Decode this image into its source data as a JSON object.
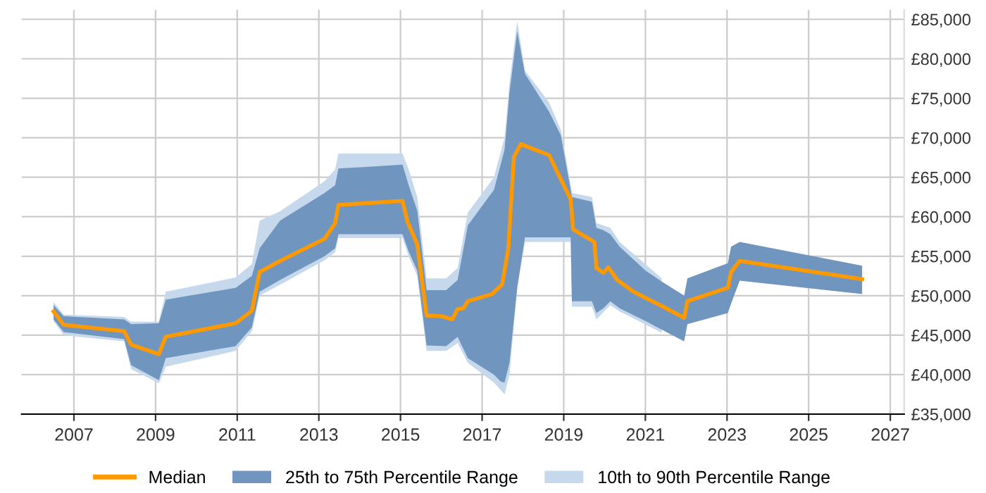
{
  "chart_data": {
    "type": "line",
    "series": [
      {
        "name": "10th to 90th Percentile Range",
        "type": "line",
        "color": "#c6d8ec",
        "values": [
          null,
          null,
          null,
          null,
          null,
          null,
          null,
          null,
          null,
          null,
          null,
          null,
          null,
          null,
          null,
          null,
          null,
          null,
          null,
          null,
          null,
          null,
          null,
          null,
          null,
          null,
          null,
          null,
          null,
          null,
          null,
          null,
          null,
          null
        ],
        "x": [
          2006.5,
          2006.75,
          2008.23,
          2008.4,
          2009.08,
          2009.25,
          2010.96,
          2011.36,
          2011.55,
          2012.05,
          2013.14,
          2013.4,
          2013.48,
          2015.05,
          2015.2,
          2015.41,
          2015.64,
          2016.12,
          2016.4,
          2016.65,
          2017.29,
          2017.55,
          2017.67,
          2017.86,
          2018.05,
          2018.64,
          2018.93,
          2019.17,
          2019.2,
          2019.69,
          2019.8,
          2020.14,
          2020.37,
          2021.4
        ],
        "lower": [
          46800,
          45000,
          44200,
          40700,
          38900,
          41000,
          43000,
          45500,
          50000,
          51400,
          54500,
          55500,
          57300,
          57300,
          55000,
          52500,
          43000,
          43000,
          44000,
          41500,
          39000,
          37500,
          40000,
          51000,
          56800,
          56800,
          56800,
          56800,
          48600,
          48600,
          47000,
          48800,
          48000,
          45300
        ],
        "upper": [
          49200,
          47600,
          47300,
          46700,
          46700,
          50500,
          52300,
          54000,
          59500,
          60700,
          64500,
          66000,
          68000,
          68000,
          66000,
          62500,
          52200,
          52200,
          53500,
          60500,
          65000,
          70000,
          77000,
          84800,
          78500,
          74500,
          71000,
          64000,
          63000,
          62500,
          59200,
          58600,
          56800,
          52200
        ]
      },
      {
        "name": "25th to 75th Percentile Range",
        "type": "line",
        "color": "#7096c0",
        "values": [
          null,
          null,
          null,
          null,
          null,
          null,
          null,
          null,
          null,
          null,
          null,
          null,
          null,
          null,
          null,
          null,
          null,
          null,
          null,
          null,
          null,
          null,
          null,
          null,
          null,
          null,
          null,
          null,
          null,
          null,
          null,
          null,
          null,
          null,
          null,
          null,
          null,
          null,
          null,
          null,
          null,
          null,
          null
        ],
        "x": [
          2006.5,
          2006.75,
          2008.23,
          2008.4,
          2009.08,
          2009.25,
          2010.96,
          2011.36,
          2011.55,
          2012.05,
          2013.14,
          2013.4,
          2013.48,
          2015.05,
          2015.2,
          2015.41,
          2015.64,
          2016.12,
          2016.4,
          2016.65,
          2017.29,
          2017.46,
          2017.55,
          2017.67,
          2017.86,
          2018.05,
          2018.64,
          2018.93,
          2019.17,
          2019.2,
          2019.69,
          2019.8,
          2019.97,
          2020.14,
          2020.37,
          2021.0,
          2021.4,
          2021.95,
          2022.03,
          2023.02,
          2023.1,
          2023.31,
          2026.31
        ],
        "lower": [
          47000,
          45400,
          44500,
          41200,
          39300,
          42100,
          43600,
          46000,
          50500,
          52000,
          55000,
          56000,
          57800,
          57800,
          55600,
          53200,
          43700,
          43600,
          44800,
          42100,
          40000,
          39100,
          39000,
          41500,
          51000,
          57400,
          57400,
          57400,
          57400,
          49300,
          49300,
          47800,
          48400,
          49300,
          48400,
          46800,
          45700,
          44200,
          46400,
          47800,
          49000,
          51900,
          50200
        ],
        "upper": [
          48800,
          47400,
          47000,
          46400,
          46500,
          49500,
          51000,
          52500,
          56000,
          59500,
          63000,
          64000,
          66100,
          66600,
          64000,
          60800,
          50700,
          50700,
          52000,
          58900,
          63400,
          66700,
          68500,
          75700,
          83500,
          78100,
          73300,
          70300,
          63400,
          62500,
          61900,
          58600,
          58300,
          57800,
          56200,
          53200,
          51800,
          50000,
          52200,
          54100,
          56200,
          56800,
          53800
        ]
      },
      {
        "name": "Median",
        "type": "line",
        "color": "#ff9900",
        "x": [
          2006.5,
          2006.75,
          2008.23,
          2008.4,
          2009.08,
          2009.25,
          2010.96,
          2011.36,
          2011.55,
          2012.05,
          2013.14,
          2013.4,
          2013.48,
          2015.05,
          2015.17,
          2015.41,
          2015.64,
          2016.01,
          2016.27,
          2016.4,
          2016.54,
          2016.65,
          2017.24,
          2017.49,
          2017.64,
          2017.78,
          2017.95,
          2018.64,
          2019.17,
          2019.23,
          2019.75,
          2019.8,
          2019.97,
          2020.09,
          2020.31,
          2020.71,
          2021.4,
          2021.95,
          2022.03,
          2023.02,
          2023.1,
          2023.31,
          2026.31
        ],
        "values": [
          48000,
          46300,
          45500,
          43800,
          42600,
          44800,
          46500,
          48100,
          53000,
          54400,
          57200,
          59200,
          61500,
          62000,
          59400,
          56500,
          47500,
          47400,
          47000,
          48300,
          48400,
          49300,
          50200,
          51400,
          55900,
          67600,
          69200,
          67800,
          62200,
          58400,
          56800,
          53500,
          52900,
          53600,
          52000,
          50500,
          48700,
          47200,
          49300,
          51000,
          53000,
          54400,
          52100
        ]
      }
    ],
    "xlim": [
      2005.72,
      2027.34
    ],
    "xticks": [
      2007,
      2009,
      2011,
      2013,
      2015,
      2017,
      2019,
      2021,
      2023,
      2025,
      2027
    ],
    "ylim": [
      35000,
      86200
    ],
    "yticks": [
      {
        "value": 35000,
        "label": "£35,000"
      },
      {
        "value": 40000,
        "label": "£40,000"
      },
      {
        "value": 45000,
        "label": "£45,000"
      },
      {
        "value": 50000,
        "label": "£50,000"
      },
      {
        "value": 55000,
        "label": "£55,000"
      },
      {
        "value": 60000,
        "label": "£60,000"
      },
      {
        "value": 65000,
        "label": "£65,000"
      },
      {
        "value": 70000,
        "label": "£70,000"
      },
      {
        "value": 75000,
        "label": "£75,000"
      },
      {
        "value": 80000,
        "label": "£80,000"
      },
      {
        "value": 85000,
        "label": "£85,000"
      }
    ],
    "grid": true,
    "legend": "bottom"
  }
}
